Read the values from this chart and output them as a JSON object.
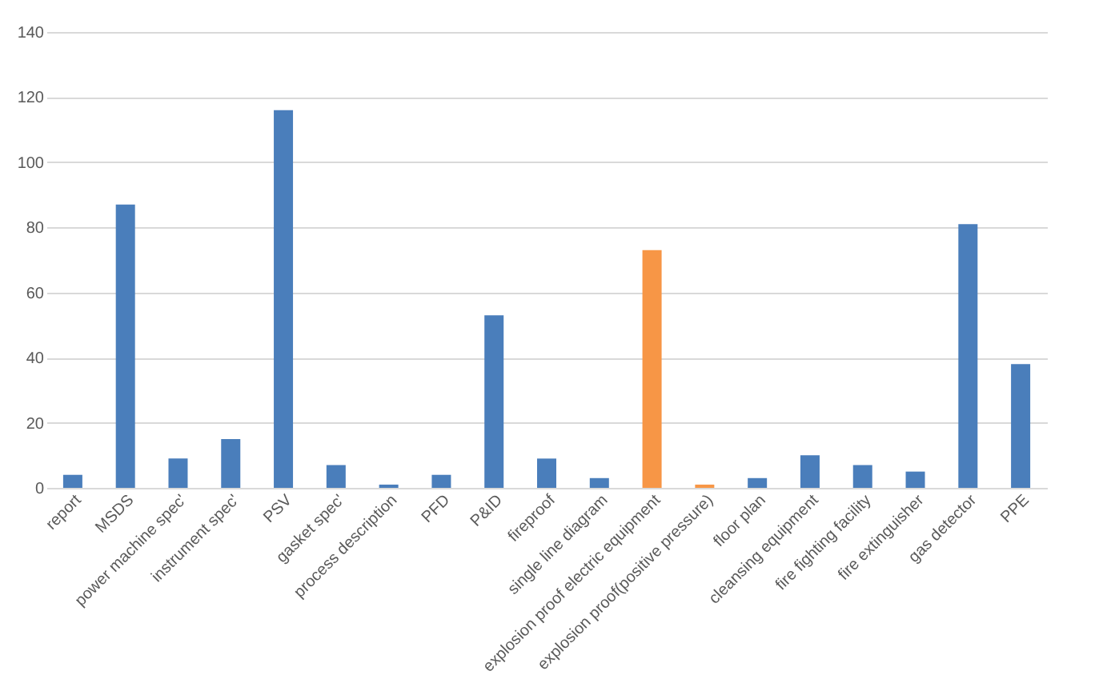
{
  "chart_data": {
    "type": "bar",
    "categories": [
      "report",
      "MSDS",
      "power machine spec'",
      "instrument spec'",
      "PSV",
      "gasket spec'",
      "process description",
      "PFD",
      "P&ID",
      "fireproof",
      "single line diagram",
      "explosion proof electric equipment",
      "explosion proof(positive pressure)",
      "floor plan",
      "cleansing equipment",
      "fire fighting facility",
      "fire extinguisher",
      "gas detector",
      "PPE"
    ],
    "values": [
      4,
      87,
      9,
      15,
      116,
      7,
      1,
      4,
      53,
      9,
      3,
      73,
      1,
      3,
      10,
      7,
      5,
      81,
      38
    ],
    "colors": [
      "#4a7ebb",
      "#4a7ebb",
      "#4a7ebb",
      "#4a7ebb",
      "#4a7ebb",
      "#4a7ebb",
      "#4a7ebb",
      "#4a7ebb",
      "#4a7ebb",
      "#4a7ebb",
      "#4a7ebb",
      "#f79646",
      "#f79646",
      "#4a7ebb",
      "#4a7ebb",
      "#4a7ebb",
      "#4a7ebb",
      "#4a7ebb",
      "#4a7ebb"
    ],
    "ylim": [
      0,
      140
    ],
    "yticks": [
      0,
      20,
      40,
      60,
      80,
      100,
      120,
      140
    ],
    "grid": "y"
  }
}
